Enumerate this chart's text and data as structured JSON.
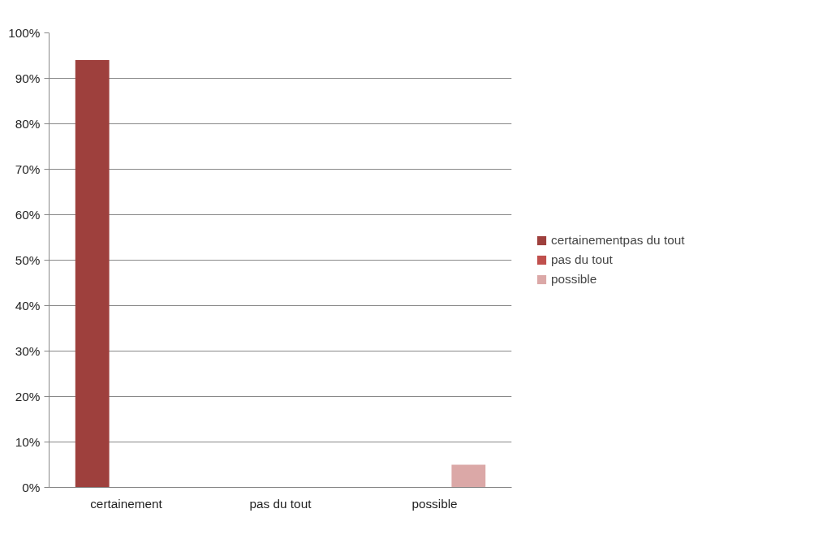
{
  "chart_data": {
    "type": "bar",
    "categories": [
      "certainement",
      "pas du tout",
      "possible"
    ],
    "series": [
      {
        "name": "certainementpas du tout",
        "color": "#9e403d",
        "values": [
          94,
          0,
          0
        ]
      },
      {
        "name": "pas du tout",
        "color": "#c0504d",
        "values": [
          0,
          0,
          0
        ]
      },
      {
        "name": "possible",
        "color": "#dba8a7",
        "values": [
          0,
          0,
          5
        ]
      }
    ],
    "ylim": [
      0,
      100
    ],
    "yticks": [
      {
        "value": 0,
        "label": "0%"
      },
      {
        "value": 10,
        "label": "10%"
      },
      {
        "value": 20,
        "label": "20%"
      },
      {
        "value": 30,
        "label": "30%"
      },
      {
        "value": 40,
        "label": "40%"
      },
      {
        "value": 50,
        "label": "50%"
      },
      {
        "value": 60,
        "label": "60%"
      },
      {
        "value": 70,
        "label": "70%"
      },
      {
        "value": 80,
        "label": "80%"
      },
      {
        "value": 90,
        "label": "90%"
      },
      {
        "value": 100,
        "label": "100%"
      }
    ],
    "grid": "y",
    "legend": "right"
  }
}
